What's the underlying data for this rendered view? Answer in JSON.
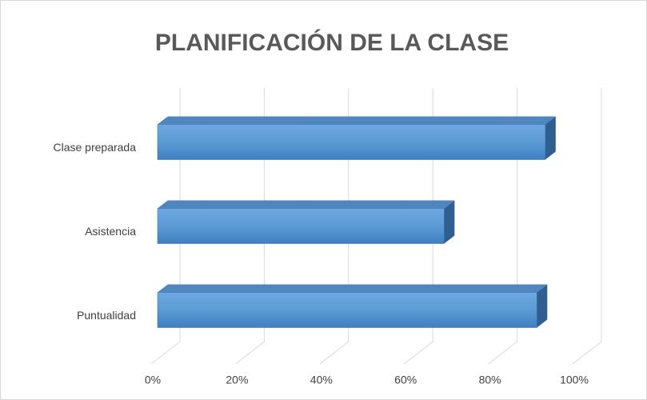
{
  "chart_data": {
    "type": "bar3d",
    "title": "PLANIFICACIÓN DE LA CLASE",
    "categories": [
      "Clase preparada",
      "Asistencia",
      "Puntualidad"
    ],
    "values": [
      92,
      68,
      90
    ],
    "color": "#5b9bd5",
    "xlim": [
      0,
      100
    ],
    "xticks": [
      {
        "value": 0,
        "label": "0%"
      },
      {
        "value": 20,
        "label": "20%"
      },
      {
        "value": 40,
        "label": "40%"
      },
      {
        "value": 60,
        "label": "60%"
      },
      {
        "value": 80,
        "label": "80%"
      },
      {
        "value": 100,
        "label": "100%"
      }
    ],
    "grid": true
  }
}
